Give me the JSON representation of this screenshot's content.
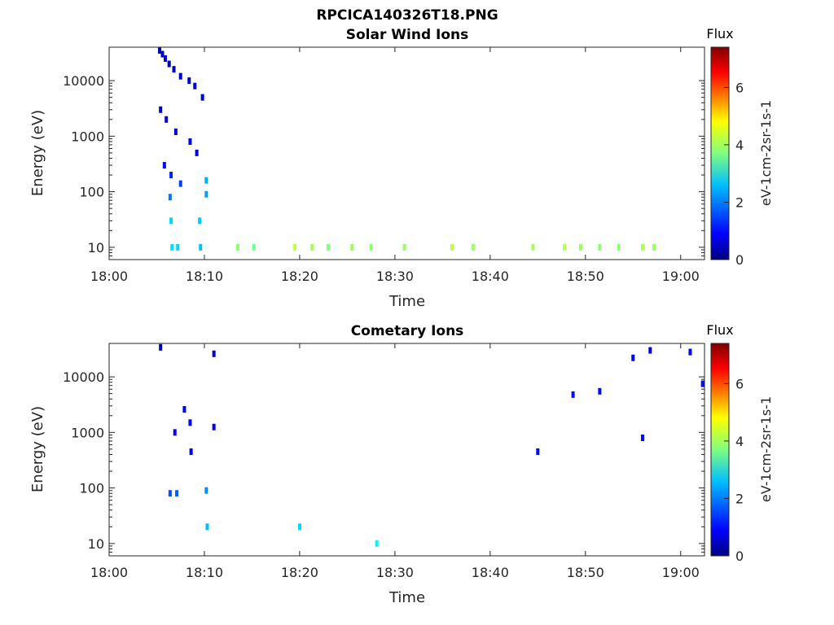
{
  "title": "RPCICA140326T18.PNG",
  "colors": {
    "axes": "#262626",
    "colormap": "jet"
  },
  "chart_data": [
    {
      "type": "heatmap",
      "title": "Solar Wind Ions",
      "xlabel": "Time",
      "ylabel": "Energy (eV)",
      "xlim_minutes": [
        0,
        62.5
      ],
      "xticks": [
        "18:00",
        "18:10",
        "18:20",
        "18:30",
        "18:40",
        "18:50",
        "19:00"
      ],
      "y_scale": "log",
      "ylim": [
        6,
        40000
      ],
      "yticks": [
        "10",
        "100",
        "1000",
        "10000"
      ],
      "colorbar": {
        "title": "Flux",
        "label": "eV-1cm-2sr-1s-1",
        "ticks": [
          "0",
          "2",
          "4",
          "6"
        ],
        "range": [
          0,
          7.4
        ]
      },
      "cells": [
        {
          "t": 5.3,
          "e": 35000,
          "v": 0.4
        },
        {
          "t": 5.6,
          "e": 30000,
          "v": 0.5
        },
        {
          "t": 5.9,
          "e": 25000,
          "v": 0.6
        },
        {
          "t": 6.3,
          "e": 20000,
          "v": 0.4
        },
        {
          "t": 6.8,
          "e": 16000,
          "v": 0.5
        },
        {
          "t": 7.5,
          "e": 12000,
          "v": 0.6
        },
        {
          "t": 8.4,
          "e": 10000,
          "v": 0.5
        },
        {
          "t": 9.0,
          "e": 8000,
          "v": 0.6
        },
        {
          "t": 9.8,
          "e": 5000,
          "v": 0.7
        },
        {
          "t": 5.4,
          "e": 3000,
          "v": 0.5
        },
        {
          "t": 6.0,
          "e": 2000,
          "v": 0.6
        },
        {
          "t": 7.0,
          "e": 1200,
          "v": 0.5
        },
        {
          "t": 8.5,
          "e": 800,
          "v": 0.7
        },
        {
          "t": 9.2,
          "e": 500,
          "v": 0.6
        },
        {
          "t": 5.8,
          "e": 300,
          "v": 1.0
        },
        {
          "t": 6.5,
          "e": 200,
          "v": 1.2
        },
        {
          "t": 7.5,
          "e": 140,
          "v": 1.4
        },
        {
          "t": 6.4,
          "e": 80,
          "v": 1.8
        },
        {
          "t": 6.5,
          "e": 30,
          "v": 2.5
        },
        {
          "t": 6.6,
          "e": 10,
          "v": 2.6
        },
        {
          "t": 7.2,
          "e": 10,
          "v": 2.5
        },
        {
          "t": 9.5,
          "e": 30,
          "v": 2.4
        },
        {
          "t": 9.6,
          "e": 10,
          "v": 2.3
        },
        {
          "t": 10.2,
          "e": 90,
          "v": 2.1
        },
        {
          "t": 10.2,
          "e": 160,
          "v": 2.2
        },
        {
          "t": 13.5,
          "e": 10,
          "v": 3.8
        },
        {
          "t": 15.2,
          "e": 10,
          "v": 3.6
        },
        {
          "t": 19.5,
          "e": 10,
          "v": 4.2
        },
        {
          "t": 21.3,
          "e": 10,
          "v": 4.0
        },
        {
          "t": 23.0,
          "e": 10,
          "v": 3.7
        },
        {
          "t": 25.5,
          "e": 10,
          "v": 3.9
        },
        {
          "t": 27.5,
          "e": 10,
          "v": 3.8
        },
        {
          "t": 31.0,
          "e": 10,
          "v": 3.9
        },
        {
          "t": 36.0,
          "e": 10,
          "v": 4.1
        },
        {
          "t": 38.2,
          "e": 10,
          "v": 3.9
        },
        {
          "t": 44.5,
          "e": 10,
          "v": 4.0
        },
        {
          "t": 47.8,
          "e": 10,
          "v": 4.1
        },
        {
          "t": 49.5,
          "e": 10,
          "v": 3.9
        },
        {
          "t": 51.5,
          "e": 10,
          "v": 3.8
        },
        {
          "t": 53.5,
          "e": 10,
          "v": 3.8
        },
        {
          "t": 56.0,
          "e": 10,
          "v": 4.0
        },
        {
          "t": 57.2,
          "e": 10,
          "v": 3.9
        }
      ]
    },
    {
      "type": "heatmap",
      "title": "Cometary Ions",
      "xlabel": "Time",
      "ylabel": "Energy (eV)",
      "xlim_minutes": [
        0,
        62.5
      ],
      "xticks": [
        "18:00",
        "18:10",
        "18:20",
        "18:30",
        "18:40",
        "18:50",
        "19:00"
      ],
      "y_scale": "log",
      "ylim": [
        6,
        40000
      ],
      "yticks": [
        "10",
        "100",
        "1000",
        "10000"
      ],
      "colorbar": {
        "title": "Flux",
        "label": "eV-1cm-2sr-1s-1",
        "ticks": [
          "0",
          "2",
          "4",
          "6"
        ],
        "range": [
          0,
          7.4
        ]
      },
      "cells": [
        {
          "t": 5.4,
          "e": 34000,
          "v": 0.4
        },
        {
          "t": 11.0,
          "e": 26000,
          "v": 0.6
        },
        {
          "t": 7.9,
          "e": 2600,
          "v": 0.8
        },
        {
          "t": 8.5,
          "e": 1500,
          "v": 0.8
        },
        {
          "t": 6.9,
          "e": 1000,
          "v": 0.9
        },
        {
          "t": 11.0,
          "e": 1250,
          "v": 0.8
        },
        {
          "t": 8.6,
          "e": 450,
          "v": 0.9
        },
        {
          "t": 6.4,
          "e": 80,
          "v": 1.5
        },
        {
          "t": 7.1,
          "e": 80,
          "v": 1.6
        },
        {
          "t": 10.2,
          "e": 90,
          "v": 2.0
        },
        {
          "t": 10.3,
          "e": 20,
          "v": 2.3
        },
        {
          "t": 20.0,
          "e": 20,
          "v": 2.5
        },
        {
          "t": 28.1,
          "e": 10,
          "v": 2.7
        },
        {
          "t": 45.0,
          "e": 450,
          "v": 1.0
        },
        {
          "t": 56.0,
          "e": 800,
          "v": 1.0
        },
        {
          "t": 55.0,
          "e": 22000,
          "v": 0.9
        },
        {
          "t": 56.8,
          "e": 30000,
          "v": 0.8
        },
        {
          "t": 61.0,
          "e": 28000,
          "v": 0.8
        },
        {
          "t": 62.3,
          "e": 7500,
          "v": 1.0
        },
        {
          "t": 51.5,
          "e": 5500,
          "v": 1.0
        },
        {
          "t": 48.7,
          "e": 4800,
          "v": 1.0
        }
      ]
    }
  ]
}
